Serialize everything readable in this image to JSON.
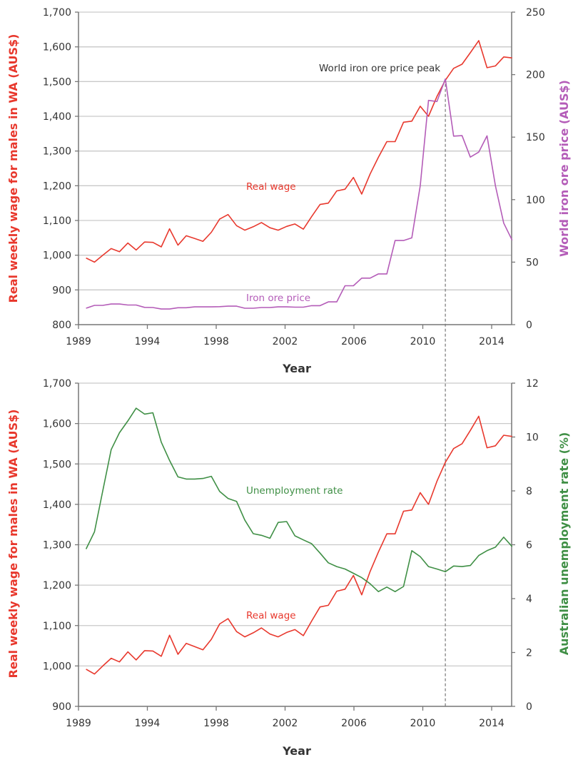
{
  "chart_data": [
    {
      "type": "line",
      "xlabel": "Year",
      "ylabel_left": "Real weekly wage for males in WA (AUS$)",
      "ylabel_right": "World iron ore price (AUS$)",
      "xtick_labels": [
        "1989",
        "1994",
        "1998",
        "2002",
        "2006",
        "2010",
        "2014"
      ],
      "ylim_left": [
        800,
        1700
      ],
      "ylim_right": [
        0,
        250
      ],
      "ytick_labels_left": [
        "800",
        "900",
        "1,000",
        "1,100",
        "1,200",
        "1,300",
        "1,400",
        "1,500",
        "1,600",
        "1,700"
      ],
      "ytick_labels_right": [
        "0",
        "50",
        "100",
        "150",
        "200",
        "250"
      ],
      "grid": true,
      "annotations": {
        "peak": "World iron ore price peak",
        "wage": "Real wage",
        "iron": "Iron ore price"
      },
      "x": [
        1990.44,
        1990.93,
        1991.41,
        1991.9,
        1992.38,
        1992.87,
        1993.35,
        1993.84,
        1994.32,
        1994.81,
        1995.29,
        1995.78,
        1996.26,
        1996.75,
        1997.23,
        1997.72,
        1998.2,
        1998.69,
        1999.18,
        1999.66,
        2000.15,
        2000.63,
        2001.12,
        2001.6,
        2002.09,
        2002.57,
        2003.06,
        2003.54,
        2004.03,
        2004.51,
        2005.0,
        2005.48,
        2005.97,
        2006.45,
        2006.94,
        2007.42,
        2007.91,
        2008.39,
        2008.88,
        2009.36,
        2009.85,
        2010.33,
        2010.82,
        2011.31,
        2011.79,
        2012.28,
        2012.76,
        2013.25,
        2013.73,
        2014.22,
        2014.7,
        2015.19
      ],
      "series": [
        {
          "name": "Real wage",
          "axis": "left",
          "color": "#e8382d",
          "values": [
            992,
            980,
            1000,
            1019,
            1010,
            1035,
            1015,
            1038,
            1037,
            1024,
            1076,
            1029,
            1056,
            1048,
            1040,
            1066,
            1104,
            1117,
            1085,
            1072,
            1082,
            1094,
            1079,
            1072,
            1083,
            1090,
            1075,
            1111,
            1146,
            1150,
            1185,
            1190,
            1224,
            1176,
            1234,
            1282,
            1327,
            1327,
            1383,
            1386,
            1429,
            1400,
            1457,
            1504,
            1538,
            1550,
            1583,
            1618,
            1540,
            1545,
            1571,
            1568
          ]
        },
        {
          "name": "Iron ore price",
          "axis": "right",
          "color": "#b45cb8",
          "values": [
            13.1,
            15.4,
            15.4,
            16.5,
            16.5,
            15.7,
            15.7,
            13.8,
            13.7,
            12.5,
            12.5,
            13.5,
            13.5,
            14.2,
            14.2,
            14.2,
            14.4,
            14.8,
            14.8,
            13.1,
            13.1,
            13.7,
            13.7,
            14.2,
            14.2,
            14.0,
            14.0,
            15.2,
            15.2,
            18.2,
            18.2,
            31.1,
            31.1,
            37.2,
            37.2,
            40.6,
            40.6,
            67.3,
            67.3,
            69.4,
            111,
            179.4,
            178.5,
            196.5,
            150.8,
            151.2,
            134,
            138,
            151,
            111,
            81.2,
            67.5
          ]
        }
      ],
      "marker_year": 2011.31
    },
    {
      "type": "line",
      "xlabel": "Year",
      "ylabel_left": "Real weekly wage for males in WA (AUS$)",
      "ylabel_right": "Australian unemployment rate (%)",
      "xtick_labels": [
        "1989",
        "1994",
        "1998",
        "2002",
        "2006",
        "2010",
        "2014"
      ],
      "ylim_left": [
        900,
        1700
      ],
      "ylim_right": [
        0,
        12
      ],
      "ytick_labels_left": [
        "900",
        "1,000",
        "1,100",
        "1,200",
        "1,300",
        "1,400",
        "1,500",
        "1,600",
        "1,700"
      ],
      "ytick_labels_right": [
        "0",
        "2",
        "4",
        "6",
        "8",
        "10",
        "12"
      ],
      "grid": true,
      "annotations": {
        "unemp": "Unemployment rate",
        "wage": "Real wage"
      },
      "x": [
        1990.44,
        1990.93,
        1991.41,
        1991.9,
        1992.38,
        1992.87,
        1993.35,
        1993.84,
        1994.32,
        1994.81,
        1995.29,
        1995.78,
        1996.26,
        1996.75,
        1997.23,
        1997.72,
        1998.2,
        1998.69,
        1999.18,
        1999.66,
        2000.15,
        2000.63,
        2001.12,
        2001.6,
        2002.09,
        2002.57,
        2003.06,
        2003.54,
        2004.03,
        2004.51,
        2005.0,
        2005.48,
        2005.97,
        2006.45,
        2006.94,
        2007.42,
        2007.91,
        2008.39,
        2008.88,
        2009.36,
        2009.85,
        2010.33,
        2010.82,
        2011.31,
        2011.79,
        2012.28,
        2012.76,
        2013.25,
        2013.73,
        2014.22,
        2014.7,
        2015.19
      ],
      "series": [
        {
          "name": "Real wage",
          "axis": "left",
          "color": "#e8382d",
          "values": [
            992,
            980,
            1000,
            1019,
            1010,
            1035,
            1015,
            1038,
            1037,
            1024,
            1076,
            1029,
            1056,
            1048,
            1040,
            1066,
            1104,
            1117,
            1085,
            1072,
            1082,
            1094,
            1079,
            1072,
            1083,
            1090,
            1075,
            1111,
            1146,
            1150,
            1185,
            1190,
            1224,
            1176,
            1234,
            1282,
            1327,
            1327,
            1383,
            1386,
            1429,
            1400,
            1457,
            1504,
            1538,
            1550,
            1583,
            1618,
            1540,
            1545,
            1571,
            1568
          ]
        },
        {
          "name": "Unemployment rate",
          "axis": "right",
          "color": "#3f8f45",
          "values": [
            5.84,
            6.48,
            8.0,
            9.53,
            10.16,
            10.6,
            11.07,
            10.85,
            10.9,
            9.81,
            9.13,
            8.52,
            8.44,
            8.44,
            8.46,
            8.54,
            7.98,
            7.72,
            7.61,
            6.92,
            6.41,
            6.35,
            6.24,
            6.83,
            6.86,
            6.33,
            6.18,
            6.04,
            5.69,
            5.33,
            5.19,
            5.1,
            4.94,
            4.78,
            4.55,
            4.26,
            4.43,
            4.26,
            4.45,
            5.78,
            5.56,
            5.19,
            5.1,
            5.0,
            5.21,
            5.19,
            5.23,
            5.6,
            5.78,
            5.91,
            6.28,
            5.93
          ]
        }
      ],
      "marker_year": 2011.31
    }
  ]
}
